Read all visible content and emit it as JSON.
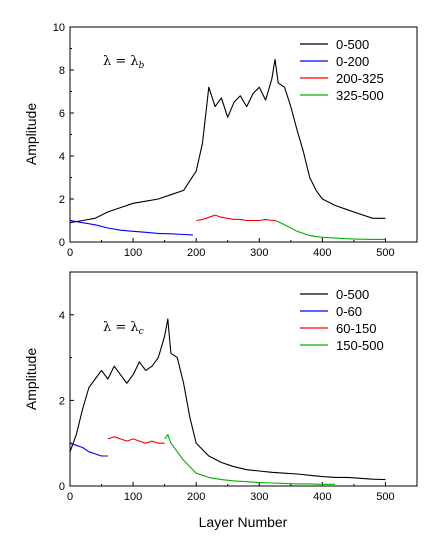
{
  "chart_data": [
    {
      "type": "line",
      "xlabel": "",
      "ylabel": "Amplitude",
      "xlim": [
        0,
        550
      ],
      "ylim": [
        0,
        10
      ],
      "xticks": [
        0,
        100,
        200,
        300,
        400,
        500
      ],
      "yticks": [
        0,
        2,
        4,
        6,
        8,
        10
      ],
      "grid": false,
      "legend_position": "top-right",
      "annotation": {
        "main": "λ = λ",
        "subscript": "b"
      },
      "series": [
        {
          "name": "0-500",
          "color": "#000000",
          "x": [
            0,
            20,
            40,
            60,
            80,
            100,
            120,
            140,
            160,
            180,
            200,
            210,
            220,
            230,
            240,
            250,
            260,
            270,
            280,
            290,
            300,
            310,
            320,
            325,
            330,
            340,
            350,
            360,
            370,
            380,
            390,
            400,
            420,
            440,
            460,
            480,
            500
          ],
          "y": [
            0.9,
            1.0,
            1.1,
            1.4,
            1.6,
            1.8,
            1.9,
            2.0,
            2.2,
            2.4,
            3.3,
            4.6,
            7.2,
            6.3,
            6.7,
            5.8,
            6.5,
            6.8,
            6.3,
            6.9,
            7.2,
            6.6,
            7.6,
            8.5,
            7.4,
            7.2,
            6.3,
            5.2,
            4.2,
            3.0,
            2.4,
            2.0,
            1.7,
            1.5,
            1.3,
            1.1,
            1.1
          ]
        },
        {
          "name": "0-200",
          "color": "#0000ff",
          "x": [
            0,
            10,
            20,
            40,
            60,
            80,
            100,
            120,
            140,
            160,
            180,
            195
          ],
          "y": [
            1.0,
            0.95,
            0.9,
            0.8,
            0.65,
            0.55,
            0.5,
            0.45,
            0.4,
            0.38,
            0.35,
            0.33
          ]
        },
        {
          "name": "200-325",
          "color": "#ff0000",
          "x": [
            200,
            210,
            220,
            230,
            240,
            250,
            260,
            270,
            280,
            290,
            300,
            310,
            320,
            325
          ],
          "y": [
            1.0,
            1.05,
            1.15,
            1.25,
            1.15,
            1.1,
            1.05,
            1.05,
            1.0,
            1.0,
            1.0,
            1.05,
            1.0,
            1.0
          ]
        },
        {
          "name": "325-500",
          "color": "#00b000",
          "x": [
            325,
            330,
            340,
            350,
            360,
            370,
            380,
            390,
            400,
            420,
            440,
            460,
            480,
            500
          ],
          "y": [
            1.0,
            0.95,
            0.8,
            0.65,
            0.5,
            0.4,
            0.3,
            0.25,
            0.22,
            0.18,
            0.15,
            0.13,
            0.12,
            0.12
          ]
        }
      ]
    },
    {
      "type": "line",
      "xlabel": "Layer Number",
      "ylabel": "Amplitude",
      "xlim": [
        0,
        550
      ],
      "ylim": [
        0,
        5
      ],
      "xticks": [
        0,
        100,
        200,
        300,
        400,
        500
      ],
      "yticks": [
        0,
        2,
        4
      ],
      "grid": false,
      "legend_position": "top-right",
      "annotation": {
        "main": "λ = λ",
        "subscript": "c"
      },
      "series": [
        {
          "name": "0-500",
          "color": "#000000",
          "x": [
            0,
            10,
            20,
            30,
            40,
            50,
            60,
            70,
            80,
            90,
            100,
            110,
            120,
            130,
            140,
            150,
            155,
            160,
            170,
            180,
            190,
            200,
            220,
            240,
            260,
            280,
            300,
            320,
            340,
            360,
            380,
            400,
            420,
            440,
            460,
            480,
            500
          ],
          "y": [
            0.8,
            1.2,
            1.8,
            2.3,
            2.5,
            2.7,
            2.5,
            2.8,
            2.6,
            2.4,
            2.6,
            2.9,
            2.7,
            2.8,
            3.0,
            3.5,
            3.9,
            3.1,
            3.0,
            2.4,
            1.6,
            1.0,
            0.7,
            0.55,
            0.45,
            0.38,
            0.35,
            0.32,
            0.3,
            0.28,
            0.25,
            0.22,
            0.2,
            0.2,
            0.18,
            0.16,
            0.15
          ]
        },
        {
          "name": "0-60",
          "color": "#0000ff",
          "x": [
            0,
            10,
            20,
            30,
            40,
            50,
            60
          ],
          "y": [
            1.0,
            0.95,
            0.9,
            0.8,
            0.75,
            0.7,
            0.7
          ]
        },
        {
          "name": "60-150",
          "color": "#ff0000",
          "x": [
            60,
            70,
            80,
            90,
            100,
            110,
            120,
            130,
            140,
            150
          ],
          "y": [
            1.1,
            1.15,
            1.1,
            1.05,
            1.1,
            1.05,
            1.0,
            1.05,
            1.0,
            1.0
          ]
        },
        {
          "name": "150-500",
          "color": "#00b000",
          "x": [
            150,
            155,
            160,
            170,
            180,
            190,
            200,
            220,
            240,
            260,
            280,
            300,
            320,
            340,
            360,
            380,
            400,
            420
          ],
          "y": [
            1.1,
            1.2,
            1.0,
            0.8,
            0.6,
            0.45,
            0.3,
            0.2,
            0.15,
            0.12,
            0.1,
            0.08,
            0.07,
            0.06,
            0.05,
            0.05,
            0.04,
            0.04
          ]
        }
      ]
    }
  ]
}
